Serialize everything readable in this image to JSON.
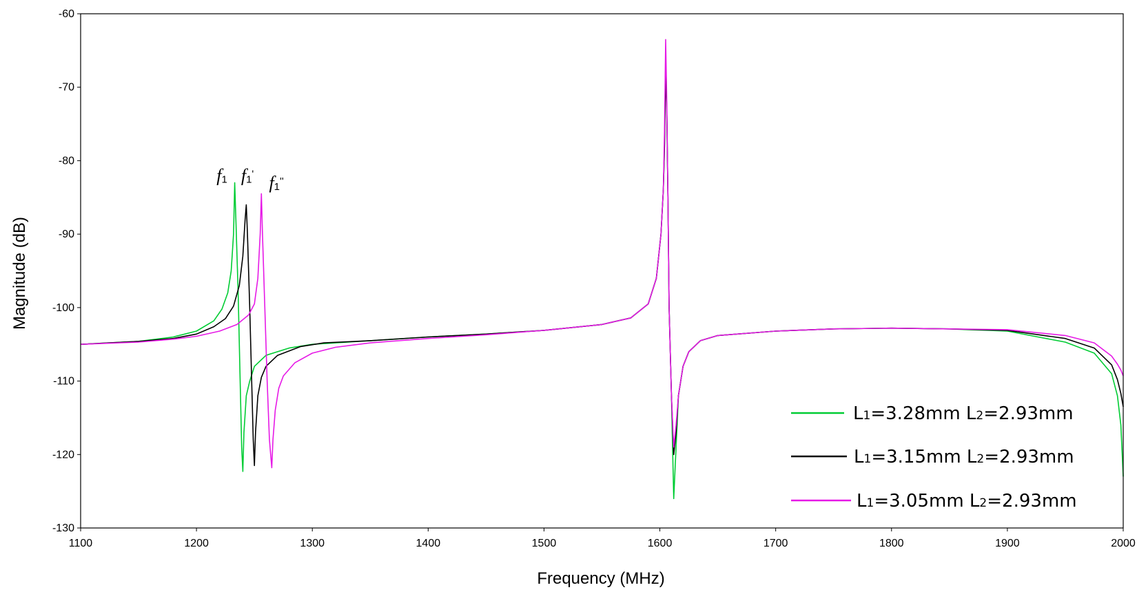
{
  "chart_data": {
    "type": "line",
    "xlabel": "Frequency (MHz)",
    "ylabel": "Magnitude (dB)",
    "xlim": [
      1100,
      2000
    ],
    "ylim": [
      -130,
      -60
    ],
    "xticks": [
      1100,
      1200,
      1300,
      1400,
      1500,
      1600,
      1700,
      1800,
      1900,
      2000
    ],
    "yticks": [
      -60,
      -70,
      -80,
      -90,
      -100,
      -110,
      -120,
      -130
    ],
    "grid": false,
    "legend_position": "bottom-right",
    "series": [
      {
        "name": "L1=3.28mm L2=2.93mm",
        "label_parts": [
          "L",
          "1",
          "=3.28mm  L",
          "2",
          "=2.93mm"
        ],
        "color": "#00cc33",
        "x": [
          1100,
          1150,
          1180,
          1200,
          1215,
          1222,
          1227,
          1230,
          1232,
          1233,
          1234,
          1236,
          1238,
          1239,
          1240,
          1241,
          1243,
          1246,
          1250,
          1260,
          1280,
          1300,
          1350,
          1400,
          1450,
          1500,
          1550,
          1575,
          1590,
          1597,
          1601,
          1603,
          1604,
          1605,
          1606,
          1607,
          1608,
          1610,
          1612,
          1614,
          1616,
          1620,
          1625,
          1635,
          1650,
          1700,
          1750,
          1800,
          1850,
          1900,
          1950,
          1975,
          1990,
          1995,
          1998,
          2000
        ],
        "y": [
          -105.0,
          -104.6,
          -104.0,
          -103.2,
          -101.8,
          -100.2,
          -98.0,
          -95.0,
          -90.0,
          -83.0,
          -88.0,
          -98.0,
          -112.0,
          -119.0,
          -122.3,
          -117.0,
          -112.0,
          -110.0,
          -108.0,
          -106.5,
          -105.5,
          -105.0,
          -104.5,
          -104.0,
          -103.6,
          -103.1,
          -102.3,
          -101.4,
          -99.5,
          -96.0,
          -90.0,
          -84.0,
          -78.0,
          -67.0,
          -73.0,
          -85.0,
          -100.0,
          -112.0,
          -126.0,
          -119.0,
          -112.0,
          -108.0,
          -106.0,
          -104.5,
          -103.8,
          -103.2,
          -102.9,
          -102.8,
          -102.9,
          -103.2,
          -104.7,
          -106.2,
          -109.0,
          -112.0,
          -116.0,
          -123.0
        ]
      },
      {
        "name": "L1=3.15mm L2=2.93mm",
        "label_parts": [
          "L",
          "1",
          "=3.15mm  L",
          "2",
          "=2.93mm"
        ],
        "color": "#000000",
        "x": [
          1100,
          1150,
          1180,
          1200,
          1215,
          1225,
          1232,
          1237,
          1240,
          1242,
          1243,
          1244,
          1246,
          1248,
          1249,
          1250,
          1251,
          1253,
          1256,
          1260,
          1270,
          1290,
          1310,
          1350,
          1400,
          1450,
          1500,
          1550,
          1575,
          1590,
          1597,
          1601,
          1603,
          1604,
          1605,
          1606,
          1607,
          1608,
          1610,
          1612,
          1614,
          1616,
          1620,
          1625,
          1635,
          1650,
          1700,
          1750,
          1800,
          1850,
          1900,
          1950,
          1975,
          1990,
          1995,
          1998,
          2000
        ],
        "y": [
          -105.0,
          -104.6,
          -104.2,
          -103.6,
          -102.6,
          -101.5,
          -99.8,
          -97.0,
          -93.0,
          -88.0,
          -86.0,
          -90.0,
          -100.0,
          -112.0,
          -118.0,
          -121.5,
          -117.0,
          -112.0,
          -109.5,
          -108.0,
          -106.5,
          -105.3,
          -104.8,
          -104.5,
          -104.0,
          -103.6,
          -103.1,
          -102.3,
          -101.4,
          -99.5,
          -96.0,
          -90.0,
          -84.0,
          -78.0,
          -68.0,
          -73.0,
          -85.0,
          -100.0,
          -112.0,
          -120.0,
          -117.0,
          -112.0,
          -108.0,
          -106.0,
          -104.5,
          -103.8,
          -103.2,
          -102.9,
          -102.8,
          -102.9,
          -103.1,
          -104.2,
          -105.5,
          -107.8,
          -109.8,
          -111.7,
          -113.5
        ]
      },
      {
        "name": "L1=3.05mm L2=2.93mm",
        "label_parts": [
          "L",
          "1",
          "=3.05mm  L",
          "2",
          "=2.93mm"
        ],
        "color": "#e619e6",
        "x": [
          1100,
          1150,
          1180,
          1200,
          1220,
          1235,
          1245,
          1250,
          1253,
          1255,
          1256,
          1257,
          1259,
          1261,
          1263,
          1265,
          1266,
          1268,
          1271,
          1275,
          1285,
          1300,
          1320,
          1350,
          1400,
          1450,
          1500,
          1550,
          1575,
          1590,
          1597,
          1601,
          1603,
          1604,
          1605,
          1606,
          1607,
          1608,
          1610,
          1612,
          1614,
          1616,
          1620,
          1625,
          1635,
          1650,
          1700,
          1750,
          1800,
          1850,
          1900,
          1950,
          1975,
          1990,
          1995,
          1998,
          2000
        ],
        "y": [
          -105.0,
          -104.7,
          -104.3,
          -103.9,
          -103.2,
          -102.3,
          -101.0,
          -99.5,
          -96.0,
          -90.0,
          -84.5,
          -90.0,
          -100.0,
          -110.0,
          -118.0,
          -121.8,
          -118.0,
          -114.0,
          -111.0,
          -109.3,
          -107.5,
          -106.2,
          -105.4,
          -104.8,
          -104.2,
          -103.7,
          -103.1,
          -102.3,
          -101.4,
          -99.5,
          -96.0,
          -90.0,
          -84.0,
          -76.0,
          -63.5,
          -72.0,
          -85.0,
          -100.0,
          -112.0,
          -119.0,
          -116.0,
          -112.0,
          -108.0,
          -106.0,
          -104.5,
          -103.8,
          -103.2,
          -102.9,
          -102.8,
          -102.9,
          -103.0,
          -103.8,
          -104.8,
          -106.6,
          -107.7,
          -108.5,
          -109.3
        ]
      }
    ],
    "annotations": [
      {
        "base": "f",
        "sub": "1",
        "suffix": "",
        "x": 1222,
        "y": -82.8
      },
      {
        "base": "f",
        "sub": "1",
        "suffix": "'",
        "x": 1244,
        "y": -82.8
      },
      {
        "base": "f",
        "sub": "1",
        "suffix": "''",
        "x": 1269,
        "y": -83.8
      }
    ]
  }
}
